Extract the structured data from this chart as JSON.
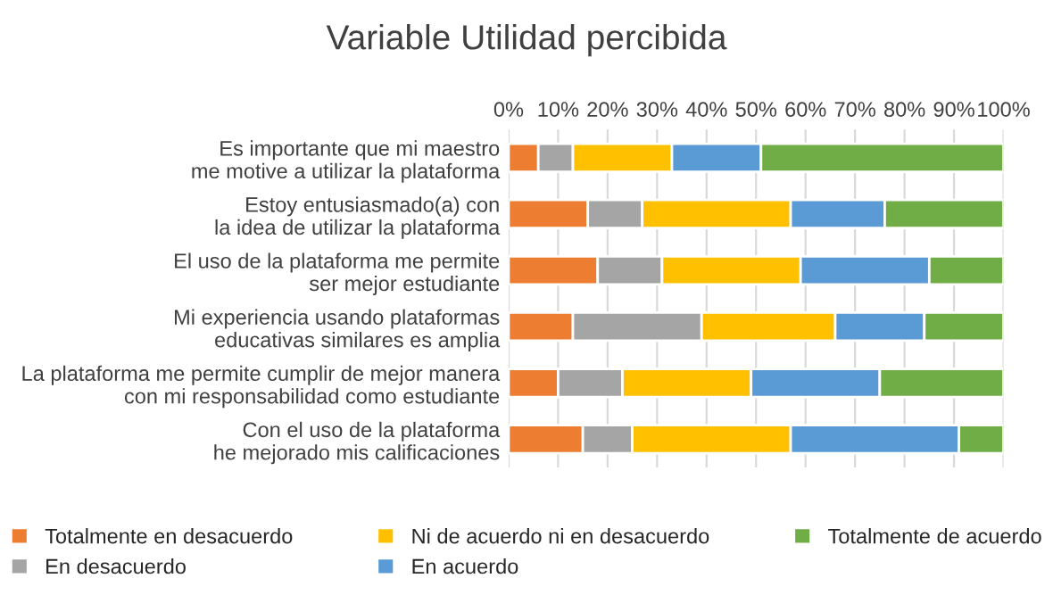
{
  "chart_data": {
    "type": "bar",
    "orientation": "horizontal",
    "stacked": true,
    "title": "Variable Utilidad percibida",
    "categories": [
      "Es importante que mi maestro\nme motive a utilizar la plataforma",
      "Estoy entusiasmado(a) con\nla idea de utilizar la plataforma",
      "El uso de la plataforma me permite\nser mejor estudiante",
      "Mi experiencia usando plataformas\neducativas similares es amplia",
      "La plataforma me permite cumplir de mejor manera\ncon mi responsabilidad como estudiante",
      "Con el uso de la plataforma\nhe mejorado mis calificaciones"
    ],
    "series": [
      {
        "name": "Totalmente en desacuerdo",
        "color": "#ed7d31",
        "values": [
          6,
          16,
          18,
          13,
          10,
          15
        ]
      },
      {
        "name": "En desacuerdo",
        "color": "#a5a5a5",
        "values": [
          7,
          11,
          13,
          26,
          13,
          10
        ]
      },
      {
        "name": "Ni de acuerdo ni en desacuerdo",
        "color": "#ffc000",
        "values": [
          20,
          30,
          28,
          27,
          26,
          32
        ]
      },
      {
        "name": "En acuerdo",
        "color": "#5b9bd5",
        "values": [
          18,
          19,
          26,
          18,
          26,
          34
        ]
      },
      {
        "name": "Totalmente de acuerdo",
        "color": "#70ad47",
        "values": [
          49,
          24,
          15,
          16,
          25,
          9
        ]
      }
    ],
    "xlim": [
      0,
      100
    ],
    "xticks": [
      {
        "value": 0,
        "label": "0%"
      },
      {
        "value": 10,
        "label": "10%"
      },
      {
        "value": 20,
        "label": "20%"
      },
      {
        "value": 30,
        "label": "30%"
      },
      {
        "value": 40,
        "label": "40%"
      },
      {
        "value": 50,
        "label": "50%"
      },
      {
        "value": 60,
        "label": "60%"
      },
      {
        "value": 70,
        "label": "70%"
      },
      {
        "value": 80,
        "label": "80%"
      },
      {
        "value": 90,
        "label": "90%"
      },
      {
        "value": 100,
        "label": "100%"
      }
    ],
    "grid": "x",
    "legend": "bottom"
  }
}
